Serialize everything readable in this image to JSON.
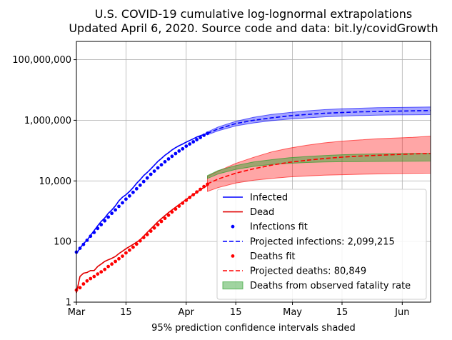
{
  "chart_data": {
    "type": "line",
    "title_lines": [
      "U.S. COVID-19 cumulative log-lognormal extrapolations",
      "Updated April 6, 2020. Source code and data: bit.ly/covidGrowth"
    ],
    "xlabel": "95% prediction confidence intervals shaded",
    "ylabel": "",
    "y_scale": "log",
    "ylim": [
      1,
      400000000
    ],
    "xlim": [
      0,
      100
    ],
    "x_unit": "days from Mar 1, 2020",
    "x_ticks": [
      {
        "x": 0,
        "label": "Mar"
      },
      {
        "x": 14,
        "label": "15"
      },
      {
        "x": 31,
        "label": "Apr"
      },
      {
        "x": 45,
        "label": "15"
      },
      {
        "x": 61,
        "label": "May"
      },
      {
        "x": 75,
        "label": "15"
      },
      {
        "x": 92,
        "label": "Jun"
      }
    ],
    "y_ticks": [
      {
        "y": 1,
        "label": "1"
      },
      {
        "y": 100,
        "label": "100"
      },
      {
        "y": 10000,
        "label": "10,000"
      },
      {
        "y": 1000000,
        "label": "1,000,000"
      },
      {
        "y": 100000000,
        "label": "100,000,000"
      }
    ],
    "grid": true,
    "legend_position": "lower-right",
    "series": [
      {
        "name": "Infected",
        "style": "solid",
        "color": "#0000ff",
        "x": [
          0,
          1,
          2,
          3,
          4,
          5,
          6,
          7,
          8,
          9,
          10,
          11,
          12,
          13,
          14,
          15,
          16,
          17,
          18,
          19,
          20,
          21,
          22,
          23,
          24,
          25,
          26,
          27,
          28,
          29,
          30,
          31,
          32,
          33,
          34,
          35,
          36,
          37
        ],
        "y": [
          40,
          60,
          85,
          110,
          160,
          230,
          330,
          460,
          600,
          850,
          1100,
          1500,
          2200,
          2900,
          3500,
          4500,
          6000,
          8300,
          11000,
          15000,
          19000,
          25000,
          33000,
          44000,
          55000,
          70000,
          85000,
          105000,
          125000,
          145000,
          165000,
          190000,
          215000,
          245000,
          280000,
          310000,
          340000,
          370000
        ]
      },
      {
        "name": "Dead",
        "style": "solid",
        "color": "#e00000",
        "x": [
          0,
          1,
          2,
          3,
          4,
          5,
          6,
          7,
          8,
          9,
          10,
          11,
          12,
          13,
          14,
          15,
          16,
          17,
          18,
          19,
          20,
          21,
          22,
          23,
          24,
          25,
          26,
          27,
          28,
          29,
          30,
          31,
          32,
          33,
          34,
          35,
          36,
          37
        ],
        "y": [
          2,
          7,
          9,
          9.5,
          11,
          11,
          15,
          18,
          22,
          25,
          28,
          32,
          40,
          48,
          58,
          68,
          80,
          95,
          115,
          150,
          200,
          260,
          340,
          450,
          570,
          720,
          900,
          1100,
          1350,
          1650,
          2000,
          2450,
          2950,
          3550,
          4250,
          5100,
          6100,
          7200
        ]
      },
      {
        "name": "Infections fit",
        "style": "points",
        "color": "#0000ff",
        "x": [
          0,
          1,
          2,
          3,
          4,
          5,
          6,
          7,
          8,
          9,
          10,
          11,
          12,
          13,
          14,
          15,
          16,
          17,
          18,
          19,
          20,
          21,
          22,
          23,
          24,
          25,
          26,
          27,
          28,
          29,
          30,
          31,
          32,
          33,
          34,
          35,
          36,
          37
        ],
        "y": [
          45,
          60,
          80,
          110,
          150,
          200,
          270,
          360,
          480,
          640,
          850,
          1100,
          1450,
          1900,
          2500,
          3200,
          4200,
          5500,
          7200,
          9500,
          12500,
          16500,
          21000,
          27000,
          34000,
          43000,
          53000,
          65000,
          80000,
          97000,
          115000,
          140000,
          165000,
          195000,
          230000,
          270000,
          320000,
          370000
        ]
      },
      {
        "name": "Projected infections: 2,099,215",
        "style": "dashed",
        "color": "#0000ff",
        "x": [
          37,
          40,
          45,
          50,
          55,
          60,
          65,
          70,
          75,
          80,
          85,
          90,
          95,
          100
        ],
        "y": [
          370000,
          520000,
          780000,
          1000000,
          1200000,
          1400000,
          1550000,
          1700000,
          1800000,
          1900000,
          1950000,
          2000000,
          2050000,
          2099215
        ],
        "band_lower": [
          330000,
          450000,
          650000,
          820000,
          970000,
          1100000,
          1200000,
          1300000,
          1380000,
          1430000,
          1470000,
          1500000,
          1520000,
          1540000
        ],
        "band_upper": [
          410000,
          600000,
          920000,
          1250000,
          1550000,
          1800000,
          2050000,
          2250000,
          2400000,
          2500000,
          2600000,
          2650000,
          2700000,
          2750000
        ]
      },
      {
        "name": "Deaths fit",
        "style": "points",
        "color": "#ff0000",
        "x": [
          0,
          1,
          2,
          3,
          4,
          5,
          6,
          7,
          8,
          9,
          10,
          11,
          12,
          13,
          14,
          15,
          16,
          17,
          18,
          19,
          20,
          21,
          22,
          23,
          24,
          25,
          26,
          27,
          28,
          29,
          30,
          31,
          32,
          33,
          34,
          35,
          36,
          37
        ],
        "y": [
          2.5,
          3,
          4,
          5,
          6,
          7,
          8.5,
          10,
          12,
          15,
          18,
          22,
          27,
          33,
          42,
          52,
          65,
          82,
          105,
          135,
          170,
          220,
          280,
          360,
          460,
          580,
          740,
          940,
          1180,
          1480,
          1850,
          2300,
          2850,
          3500,
          4300,
          5300,
          6500,
          7800
        ]
      },
      {
        "name": "Projected deaths: 80,849",
        "style": "dashed",
        "color": "#ff0000",
        "x": [
          37,
          40,
          45,
          50,
          55,
          60,
          65,
          70,
          75,
          80,
          85,
          90,
          95,
          100
        ],
        "y": [
          8000,
          11500,
          18000,
          25000,
          33000,
          41000,
          48000,
          55000,
          61000,
          66000,
          70000,
          74000,
          77500,
          80849
        ],
        "band_lower": [
          4500,
          6000,
          8500,
          10500,
          12000,
          13500,
          14500,
          15500,
          16000,
          16500,
          17000,
          17500,
          17800,
          18000
        ],
        "band_upper": [
          14000,
          21000,
          38000,
          60000,
          90000,
          120000,
          150000,
          180000,
          205000,
          225000,
          245000,
          260000,
          275000,
          300000
        ]
      }
    ],
    "fill_series": {
      "name": "Deaths from observed fatality rate",
      "color": "#2ca02c",
      "x": [
        37,
        40,
        45,
        50,
        55,
        60,
        65,
        70,
        75,
        80,
        85,
        90,
        95,
        100
      ],
      "lower": [
        12000,
        17000,
        24000,
        30000,
        35000,
        38000,
        40500,
        42000,
        43000,
        43500,
        44000,
        44500,
        45000,
        45500
      ],
      "upper": [
        15000,
        22000,
        32000,
        42000,
        50000,
        58000,
        64000,
        69000,
        73000,
        76000,
        78000,
        79500,
        80500,
        81000
      ]
    }
  }
}
